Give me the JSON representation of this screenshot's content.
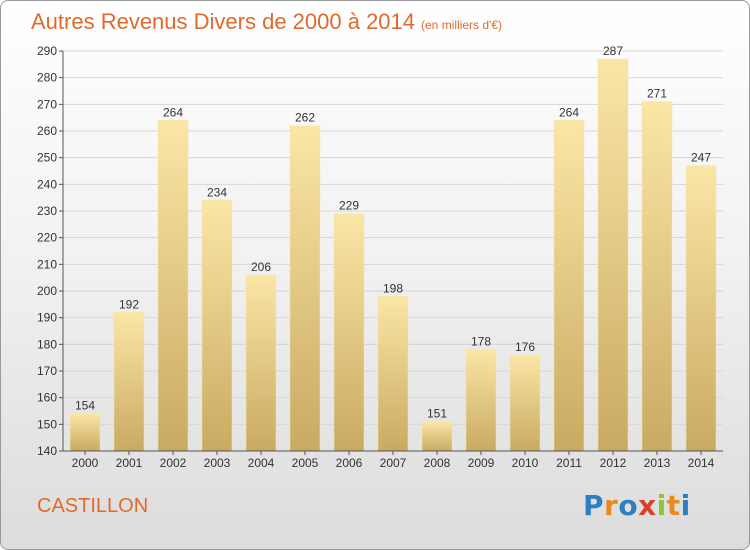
{
  "title": {
    "main": "Autres Revenus Divers de 2000 à 2014",
    "unit": "(en milliers d'€)"
  },
  "commune": "CASTILLON",
  "logo": {
    "letters": [
      "P",
      "r",
      "o",
      "x",
      "i",
      "t",
      "i"
    ],
    "colors": [
      "#2d7fc1",
      "#e98a1f",
      "#2d7fc1",
      "#d9412b",
      "#8fc43a",
      "#e98a1f",
      "#2d7fc1"
    ]
  },
  "colors": {
    "title": "#e06a2c",
    "bar_light": "#fbe6a6",
    "bar_dark": "#c9aa62",
    "grid": "#d6d6d6",
    "axis": "#555555"
  },
  "chart_data": {
    "type": "bar",
    "categories": [
      "2000",
      "2001",
      "2002",
      "2003",
      "2004",
      "2005",
      "2006",
      "2007",
      "2008",
      "2009",
      "2010",
      "2011",
      "2012",
      "2013",
      "2014"
    ],
    "values": [
      154,
      192,
      264,
      234,
      206,
      262,
      229,
      198,
      151,
      178,
      176,
      264,
      287,
      271,
      247
    ],
    "ylim": [
      140,
      290
    ],
    "yticks": [
      140,
      150,
      160,
      170,
      180,
      190,
      200,
      210,
      220,
      230,
      240,
      250,
      260,
      270,
      280,
      290
    ],
    "grid": true,
    "data_labels": true
  }
}
